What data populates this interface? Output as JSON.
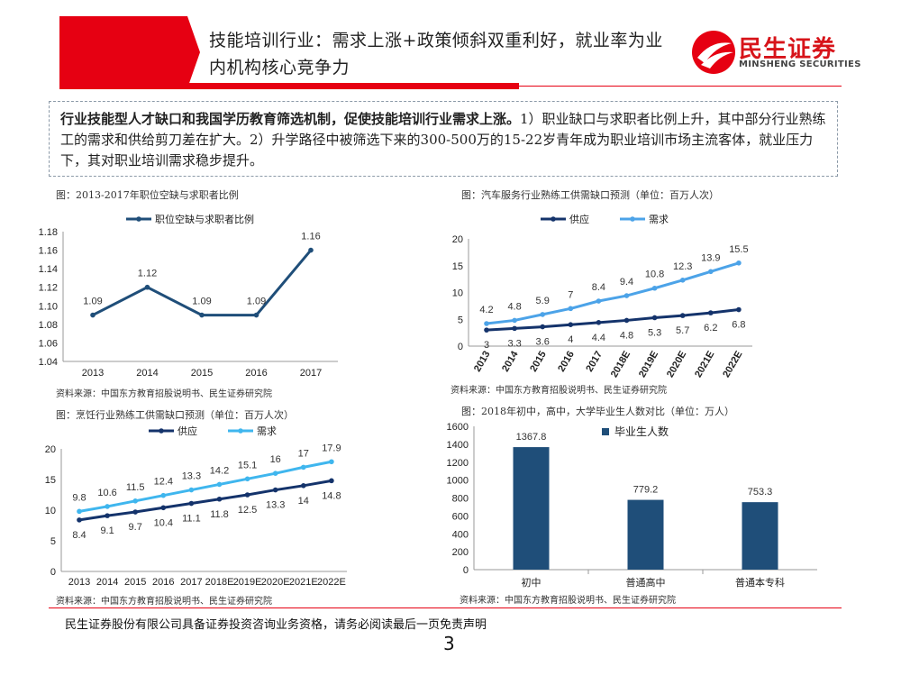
{
  "header": {
    "title": "技能培训行业：需求上涨+政策倾斜双重利好，就业率为业内机构核心竞争力",
    "logo_cn": "民生证券",
    "logo_en": "MINSHENG SECURITIES"
  },
  "summary": {
    "bold_text": "行业技能型人才缺口和我国学历教育筛选机制，促使技能培训行业需求上涨。",
    "body_text": "1）职业缺口与求职者比例上升，其中部分行业熟练工的需求和供给剪刀差在扩大。2）升学路径中被筛选下来的300-500万的15-22岁青年成为职业培训市场主流客体，就业压力下，其对职业培训需求稳步提升。"
  },
  "panels": {
    "p1": {
      "title": "图：2013-2017年职位空缺与求职者比例",
      "source": "资料来源：中国东方教育招股说明书、民生证券研究院"
    },
    "p2": {
      "title": "图：汽车服务行业熟练工供需缺口预测（单位：百万人次）",
      "source": "资料来源：中国东方教育招股说明书、民生证券研究院"
    },
    "p3": {
      "title": "图：烹饪行业熟练工供需缺口预测（单位：百万人次）",
      "source": "资料来源：中国东方教育招股说明书、民生证券研究院"
    },
    "p4": {
      "title": "图：2018年初中，高中，大学毕业生人数对比（单位：万人）",
      "source": "资料来源：中国东方教育招股说明书、民生证券研究院"
    }
  },
  "footer": {
    "disclaimer": "民生证券股份有限公司具备证券投资咨询业务资格，请务必阅读最后一页免责声明",
    "page_number": "3"
  },
  "chart_data": [
    {
      "id": "c1",
      "type": "line",
      "x": [
        "2013",
        "2014",
        "2015",
        "2016",
        "2017"
      ],
      "series": [
        {
          "name": "职位空缺与求职者比例",
          "values": [
            1.09,
            1.12,
            1.09,
            1.09,
            1.16
          ],
          "labels": [
            "1.09",
            "1.12",
            "1.09",
            "1.09",
            "1.16"
          ],
          "color": "#1f4e79"
        }
      ],
      "ylim": [
        1.04,
        1.18
      ],
      "yticks": [
        "1.04",
        "1.06",
        "1.08",
        "1.10",
        "1.12",
        "1.14",
        "1.16",
        "1.18"
      ],
      "legend": "top-left",
      "grid": false
    },
    {
      "id": "c2",
      "type": "line",
      "x": [
        "2013",
        "2014",
        "2015",
        "2016",
        "2017",
        "2018E",
        "2019E",
        "2020E",
        "2021E",
        "2022E"
      ],
      "series": [
        {
          "name": "供应",
          "values": [
            3,
            3.3,
            3.6,
            4,
            4.4,
            4.8,
            5.3,
            5.7,
            6.2,
            6.8
          ],
          "labels": [
            "3",
            "3.3",
            "3.6",
            "4",
            "4.4",
            "4.8",
            "5.3",
            "5.7",
            "6.2",
            "6.8"
          ],
          "color": "#14336b"
        },
        {
          "name": "需求",
          "values": [
            4.2,
            4.8,
            5.9,
            7,
            8.4,
            9.4,
            10.8,
            12.3,
            13.9,
            15.5
          ],
          "labels": [
            "4.2",
            "4.8",
            "5.9",
            "7",
            "8.4",
            "9.4",
            "10.8",
            "12.3",
            "13.9",
            "15.5"
          ],
          "color": "#4ca3e8"
        }
      ],
      "ylim": [
        0,
        20
      ],
      "yticks": [
        "0",
        "5",
        "10",
        "15",
        "20"
      ],
      "legend": "top",
      "grid": false
    },
    {
      "id": "c3",
      "type": "line",
      "x": [
        "2013",
        "2014",
        "2015",
        "2016",
        "2017",
        "2018E",
        "2019E",
        "2020E",
        "2021E",
        "2022E"
      ],
      "series": [
        {
          "name": "供应",
          "values": [
            8.4,
            9.1,
            9.7,
            10.4,
            11.1,
            11.8,
            12.5,
            13.3,
            14,
            14.8
          ],
          "labels": [
            "8.4",
            "9.1",
            "9.7",
            "10.4",
            "11.1",
            "11.8",
            "12.5",
            "13.3",
            "14",
            "14.8"
          ],
          "color": "#14336b"
        },
        {
          "name": "需求",
          "values": [
            9.8,
            10.6,
            11.5,
            12.4,
            13.3,
            14.2,
            15.1,
            16,
            17,
            17.9
          ],
          "labels": [
            "9.8",
            "10.6",
            "11.5",
            "12.4",
            "13.3",
            "14.2",
            "15.1",
            "16",
            "17",
            "17.9"
          ],
          "color": "#3fb6ee"
        }
      ],
      "ylim": [
        0,
        20
      ],
      "yticks": [
        "0",
        "5",
        "10",
        "15",
        "20"
      ],
      "legend": "top",
      "grid": false
    },
    {
      "id": "c4",
      "type": "bar",
      "categories": [
        "初中",
        "普通高中",
        "普通本专科"
      ],
      "series": [
        {
          "name": "毕业生人数",
          "values": [
            1367.8,
            779.2,
            753.3
          ],
          "labels": [
            "1367.8",
            "779.2",
            "753.3"
          ],
          "color": "#1f4e79"
        }
      ],
      "ylim": [
        0,
        1600
      ],
      "yticks": [
        "0",
        "200",
        "400",
        "600",
        "800",
        "1000",
        "1200",
        "1400",
        "1600"
      ],
      "legend": "top",
      "grid": false
    }
  ]
}
